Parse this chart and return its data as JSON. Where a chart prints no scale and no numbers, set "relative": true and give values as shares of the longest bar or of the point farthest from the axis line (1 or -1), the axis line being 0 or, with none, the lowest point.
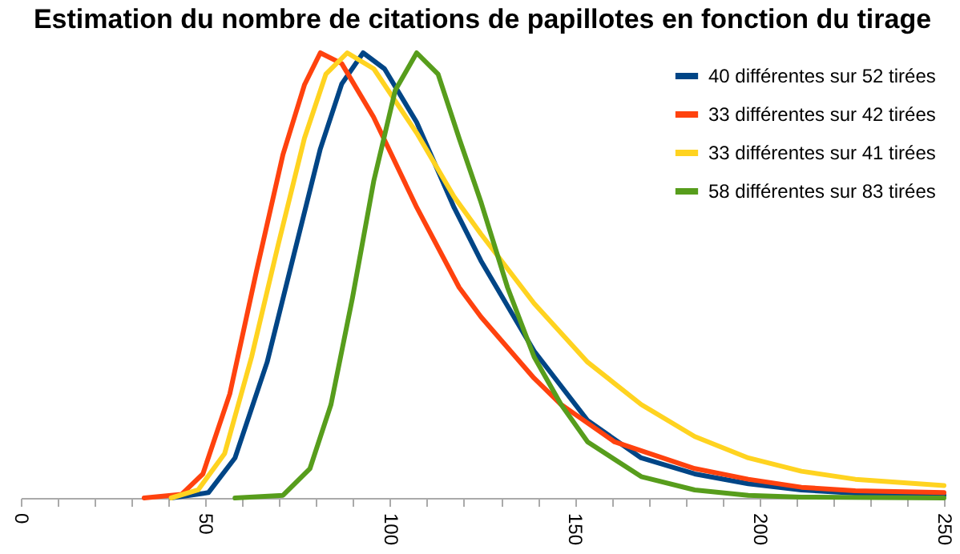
{
  "chart_data": {
    "type": "line",
    "title": "Estimation du nombre de citations de papillotes en fonction du tirage",
    "relative": true,
    "legend": "top right",
    "marker": "none",
    "line_style": "solid",
    "grid": false,
    "xlim": [
      0,
      250
    ],
    "xticks": [
      0,
      {
        "value": 10,
        "label": null
      },
      {
        "value": 20,
        "label": null
      },
      {
        "value": 30,
        "label": null
      },
      {
        "value": 40,
        "label": null
      },
      50,
      {
        "value": 60,
        "label": null
      },
      {
        "value": 70,
        "label": null
      },
      {
        "value": 80,
        "label": null
      },
      {
        "value": 90,
        "label": null
      },
      100,
      {
        "value": 110,
        "label": null
      },
      {
        "value": 120,
        "label": null
      },
      {
        "value": 130,
        "label": null
      },
      {
        "value": 140,
        "label": null
      },
      150,
      {
        "value": 160,
        "label": null
      },
      {
        "value": 170,
        "label": null
      },
      {
        "value": 180,
        "label": null
      },
      {
        "value": 190,
        "label": null
      },
      200,
      {
        "value": 210,
        "label": null
      },
      {
        "value": 220,
        "label": null
      },
      {
        "value": 230,
        "label": null
      },
      {
        "value": 240,
        "label": null
      },
      250
    ],
    "series": [
      {
        "name": "40 différentes sur 52 tirées",
        "color": "#004586",
        "x": [
          40.7,
          50.8,
          58,
          66.7,
          73.9,
          81.1,
          86.9,
          92.7,
          98.5,
          107.2,
          117.3,
          124.6,
          139,
          153.5,
          168,
          182.5,
          197,
          211.4,
          226,
          250
        ],
        "values": [
          0,
          0.012,
          0.09,
          0.305,
          0.545,
          0.784,
          0.93,
          1,
          0.964,
          0.844,
          0.653,
          0.533,
          0.33,
          0.174,
          0.09,
          0.054,
          0.032,
          0.018,
          0.011,
          0.006
        ]
      },
      {
        "name": "33 différentes sur 42 tirées",
        "color": "#ff420e",
        "x": [
          33.4,
          43.5,
          49.3,
          56.6,
          63.8,
          71,
          76.8,
          81.1,
          86.9,
          95.5,
          107.2,
          118.7,
          124.6,
          139,
          146.3,
          160.8,
          182.5,
          197,
          211.4,
          226,
          250
        ],
        "values": [
          0,
          0.008,
          0.054,
          0.234,
          0.509,
          0.772,
          0.928,
          1,
          0.976,
          0.856,
          0.653,
          0.473,
          0.407,
          0.269,
          0.21,
          0.126,
          0.066,
          0.042,
          0.024,
          0.016,
          0.012
        ]
      },
      {
        "name": "33 différentes sur 41 tirées",
        "color": "#ffd320",
        "x": [
          40.7,
          48,
          55.2,
          62.5,
          69.7,
          76.8,
          82.6,
          88.4,
          95.6,
          107.2,
          117.3,
          124.6,
          139,
          153.5,
          168,
          182.5,
          197,
          211.4,
          226,
          250
        ],
        "values": [
          0,
          0.018,
          0.1,
          0.317,
          0.569,
          0.808,
          0.952,
          1,
          0.964,
          0.82,
          0.677,
          0.593,
          0.437,
          0.305,
          0.21,
          0.138,
          0.09,
          0.06,
          0.042,
          0.028
        ]
      },
      {
        "name": "58 différentes sur 83 tirées",
        "color": "#579d1c",
        "x": [
          58,
          71,
          78.3,
          84,
          89.8,
          95.6,
          101.4,
          107.2,
          113,
          118.7,
          124.6,
          131.8,
          139,
          146.3,
          153.5,
          168,
          182.5,
          197,
          211.4,
          250
        ],
        "values": [
          0,
          0.006,
          0.066,
          0.21,
          0.449,
          0.713,
          0.916,
          1,
          0.952,
          0.808,
          0.665,
          0.473,
          0.317,
          0.21,
          0.126,
          0.048,
          0.018,
          0.006,
          0.002,
          0
        ]
      }
    ]
  }
}
